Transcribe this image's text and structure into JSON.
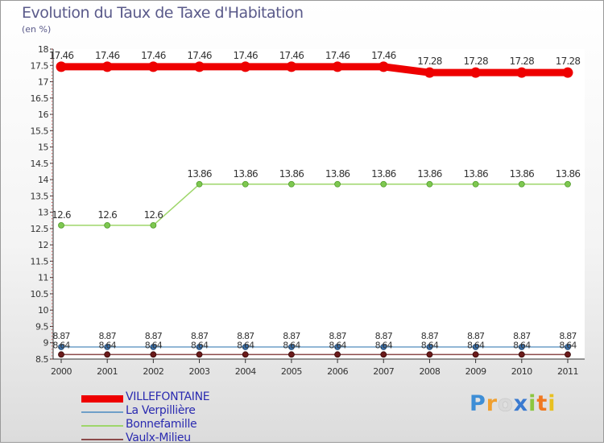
{
  "title": "Evolution du Taux de Taxe d'Habitation",
  "subtitle": "(en %)",
  "logo": {
    "text": "Proxiti"
  },
  "chart_data": {
    "type": "line",
    "x": [
      "2000",
      "2001",
      "2002",
      "2003",
      "2004",
      "2005",
      "2006",
      "2007",
      "2008",
      "2009",
      "2010",
      "2011"
    ],
    "ylim": [
      8.5,
      18
    ],
    "yticks": [
      "8.5",
      "9",
      "9.5",
      "10",
      "10.5",
      "11",
      "11.5",
      "12",
      "12.5",
      "13",
      "13.5",
      "14",
      "14.5",
      "15",
      "15.5",
      "16",
      "16.5",
      "17",
      "17.5",
      "18"
    ],
    "series": [
      {
        "name": "VILLEFONTAINE",
        "color": "#ee0000",
        "values": [
          17.46,
          17.46,
          17.46,
          17.46,
          17.46,
          17.46,
          17.46,
          17.46,
          17.28,
          17.28,
          17.28,
          17.28
        ],
        "labels": [
          "17.46",
          "17.46",
          "17.46",
          "17.46",
          "17.46",
          "17.46",
          "17.46",
          "17.46",
          "17.28",
          "17.28",
          "17.28",
          "17.28"
        ]
      },
      {
        "name": "La Verpillière",
        "color": "#6f9fc8",
        "values": [
          8.87,
          8.87,
          8.87,
          8.87,
          8.87,
          8.87,
          8.87,
          8.87,
          8.87,
          8.87,
          8.87,
          8.87
        ],
        "labels": [
          "8.87",
          "8.87",
          "8.87",
          "8.87",
          "8.87",
          "8.87",
          "8.87",
          "8.87",
          "8.87",
          "8.87",
          "8.87",
          "8.87"
        ]
      },
      {
        "name": "Bonnefamille",
        "color": "#9ed66a",
        "values": [
          12.6,
          12.6,
          12.6,
          13.86,
          13.86,
          13.86,
          13.86,
          13.86,
          13.86,
          13.86,
          13.86,
          13.86
        ],
        "labels": [
          "12.6",
          "12.6",
          "12.6",
          "13.86",
          "13.86",
          "13.86",
          "13.86",
          "13.86",
          "13.86",
          "13.86",
          "13.86",
          "13.86"
        ]
      },
      {
        "name": "Vaulx-Milieu",
        "color": "#8b4a4a",
        "values": [
          8.64,
          8.64,
          8.64,
          8.64,
          8.64,
          8.64,
          8.64,
          8.64,
          8.64,
          8.64,
          8.64,
          8.64
        ],
        "labels": [
          "8.64",
          "8.64",
          "8.64",
          "8.64",
          "8.64",
          "8.64",
          "8.64",
          "8.64",
          "8.64",
          "8.64",
          "8.64",
          "8.64"
        ]
      }
    ]
  }
}
